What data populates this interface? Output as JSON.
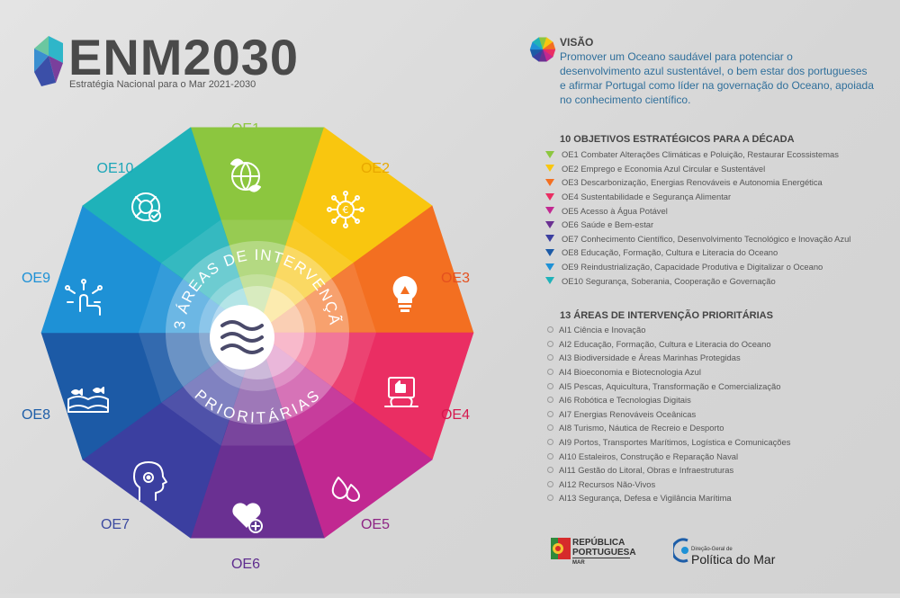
{
  "header": {
    "title": "ENM2030",
    "subtitle": "Estratégia Nacional para o Mar 2021-2030"
  },
  "diagram": {
    "segments": [
      {
        "code": "OE1",
        "color": "#8cc63f",
        "label_color": "#8cc63f",
        "icon": "globe-leaves-icon"
      },
      {
        "code": "OE2",
        "color": "#f9c60f",
        "label_color": "#e8a800",
        "icon": "euro-network-icon"
      },
      {
        "code": "OE3",
        "color": "#f36f21",
        "label_color": "#e4501e",
        "icon": "lightbulb-recycle-icon"
      },
      {
        "code": "OE4",
        "color": "#ea2e63",
        "label_color": "#d6194f",
        "icon": "thumbs-up-plant-icon"
      },
      {
        "code": "OE5",
        "color": "#c12891",
        "label_color": "#8e2584",
        "icon": "water-drops-icon"
      },
      {
        "code": "OE6",
        "color": "#6a3092",
        "label_color": "#5f2d8f",
        "icon": "heart-plus-icon"
      },
      {
        "code": "OE7",
        "color": "#3b3fa0",
        "label_color": "#3c4aa0",
        "icon": "head-gear-icon"
      },
      {
        "code": "OE8",
        "color": "#1c5aa6",
        "label_color": "#1e5ea8",
        "icon": "book-fish-icon"
      },
      {
        "code": "OE9",
        "color": "#1e91d6",
        "label_color": "#1e91d6",
        "icon": "hand-digital-icon"
      },
      {
        "code": "OE10",
        "color": "#1fb2b9",
        "label_color": "#1ca6b8",
        "icon": "lifebuoy-check-icon"
      }
    ],
    "ring_top_text": "13 ÁREAS DE INTERVENÇÃO",
    "ring_bottom_text": "PRIORITÁRIAS",
    "center_icon": "waves-icon"
  },
  "vision": {
    "title": "VISÃO",
    "text": "Promover um Oceano saudável para potenciar o desenvolvimento azul sustentável, o bem estar dos portugueses e afirmar Portugal como líder na governação do Oceano, apoiada no conhecimento científico."
  },
  "objectives": {
    "title": "10 OBJETIVOS ESTRATÉGICOS PARA A DÉCADA",
    "items": [
      {
        "code": "OE1",
        "text": "Combater Alterações Climáticas e Poluição, Restaurar Ecossistemas"
      },
      {
        "code": "OE2",
        "text": "Emprego e Economia Azul Circular e Sustentável"
      },
      {
        "code": "OE3",
        "text": "Descarbonização, Energias Renováveis e Autonomia Energética"
      },
      {
        "code": "OE4",
        "text": "Sustentabilidade e Segurança Alimentar"
      },
      {
        "code": "OE5",
        "text": "Acesso à Água Potável"
      },
      {
        "code": "OE6",
        "text": "Saúde e Bem-estar"
      },
      {
        "code": "OE7",
        "text": "Conhecimento Científico, Desenvolvimento Tecnológico e Inovação Azul"
      },
      {
        "code": "OE8",
        "text": "Educação, Formação, Cultura e Literacia do Oceano"
      },
      {
        "code": "OE9",
        "text": "Reindustrialização, Capacidade Produtiva e Digitalizar o Oceano"
      },
      {
        "code": "OE10",
        "text": "Segurança, Soberania, Cooperação e Governação"
      }
    ]
  },
  "areas": {
    "title": "13 ÁREAS DE INTERVENÇÃO PRIORITÁRIAS",
    "items": [
      {
        "code": "AI1",
        "text": "Ciência e Inovação"
      },
      {
        "code": "AI2",
        "text": "Educação, Formação, Cultura e Literacia do Oceano"
      },
      {
        "code": "AI3",
        "text": "Biodiversidade e Áreas Marinhas Protegidas"
      },
      {
        "code": "AI4",
        "text": "Bioeconomia e Biotecnologia Azul"
      },
      {
        "code": "AI5",
        "text": "Pescas, Aquicultura, Transformação e Comercialização"
      },
      {
        "code": "AI6",
        "text": "Robótica e Tecnologias Digitais"
      },
      {
        "code": "AI7",
        "text": "Energias Renováveis Oceânicas"
      },
      {
        "code": "AI8",
        "text": "Turismo, Náutica de Recreio e Desporto"
      },
      {
        "code": "AI9",
        "text": "Portos, Transportes Marítimos, Logística e Comunicações"
      },
      {
        "code": "AI10",
        "text": "Estaleiros, Construção e Reparação Naval"
      },
      {
        "code": "AI11",
        "text": "Gestão do Litoral, Obras e Infraestruturas"
      },
      {
        "code": "AI12",
        "text": "Recursos Não-Vivos"
      },
      {
        "code": "AI13",
        "text": "Segurança, Defesa e Vigilância Marítima"
      }
    ]
  },
  "footer": {
    "republica_line1": "REPÚBLICA",
    "republica_line2": "PORTUGUESA",
    "republica_sub": "MAR",
    "dgpm_small": "Direção-Geral de",
    "dgpm_big": "Política do Mar"
  }
}
